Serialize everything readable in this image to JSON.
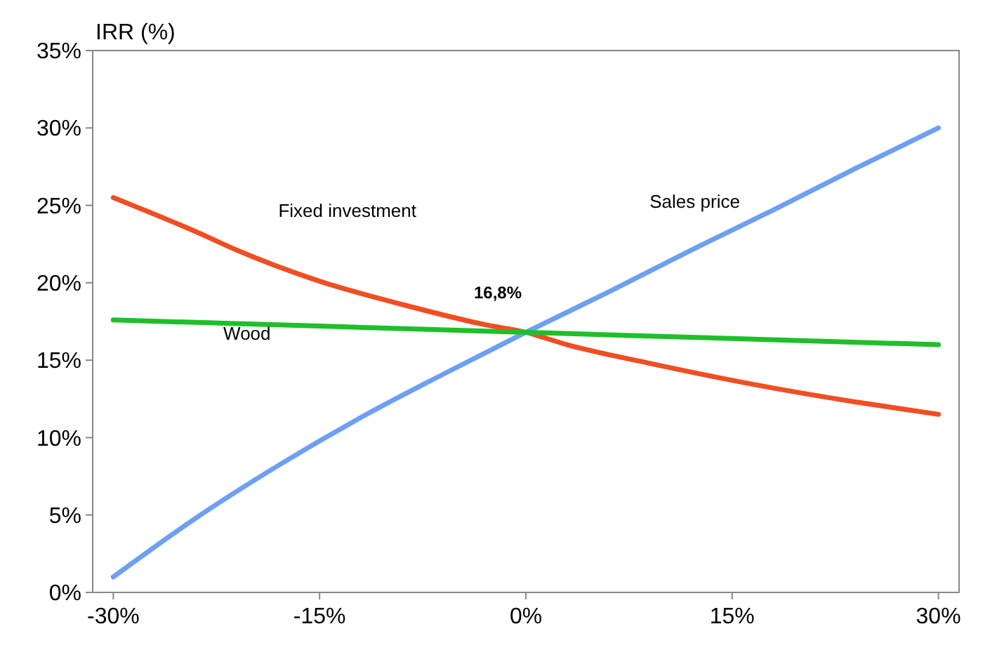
{
  "chart_data": {
    "type": "line",
    "ylabel": "IRR (%)",
    "xlim": [
      -31.5,
      31.5
    ],
    "xticks": [
      {
        "value": -30,
        "label": "-30%"
      },
      {
        "value": -15,
        "label": "-15%"
      },
      {
        "value": 0,
        "label": "0%"
      },
      {
        "value": 15,
        "label": "15%"
      },
      {
        "value": 30,
        "label": "30%"
      }
    ],
    "ylim": [
      0,
      35
    ],
    "yticks": [
      {
        "value": 0,
        "label": "0%"
      },
      {
        "value": 5,
        "label": "5%"
      },
      {
        "value": 10,
        "label": "10%"
      },
      {
        "value": 15,
        "label": "15%"
      },
      {
        "value": 20,
        "label": "20%"
      },
      {
        "value": 25,
        "label": "25%"
      },
      {
        "value": 30,
        "label": "30%"
      },
      {
        "value": 35,
        "label": "35%"
      }
    ],
    "grid": false,
    "marker": "none",
    "line_style": "solid",
    "series": [
      {
        "name": "Sales price",
        "color": "#6f9ff5",
        "x": [
          -30,
          -24,
          -18,
          -12,
          -6,
          0,
          6,
          12,
          18,
          24,
          30
        ],
        "values": [
          1,
          4.8,
          8.2,
          11.3,
          14.1,
          16.8,
          19.4,
          22.1,
          24.7,
          27.4,
          30
        ]
      },
      {
        "name": "Fixed investment",
        "color": "#f04e23",
        "x": [
          -30,
          -24,
          -21,
          -15,
          -9,
          -3,
          0,
          3,
          9,
          18,
          24,
          30
        ],
        "values": [
          25.5,
          23.3,
          22.1,
          20.1,
          18.6,
          17.3,
          16.8,
          16,
          14.8,
          13.2,
          12.3,
          11.5
        ]
      },
      {
        "name": "Wood",
        "color": "#1fbf2a",
        "x": [
          -30,
          -15,
          0,
          15,
          30
        ],
        "values": [
          17.6,
          17.2,
          16.8,
          16.4,
          16.0
        ]
      }
    ],
    "annotations": [
      {
        "text": "16,8%",
        "x": 0,
        "y": 16.8
      }
    ]
  }
}
